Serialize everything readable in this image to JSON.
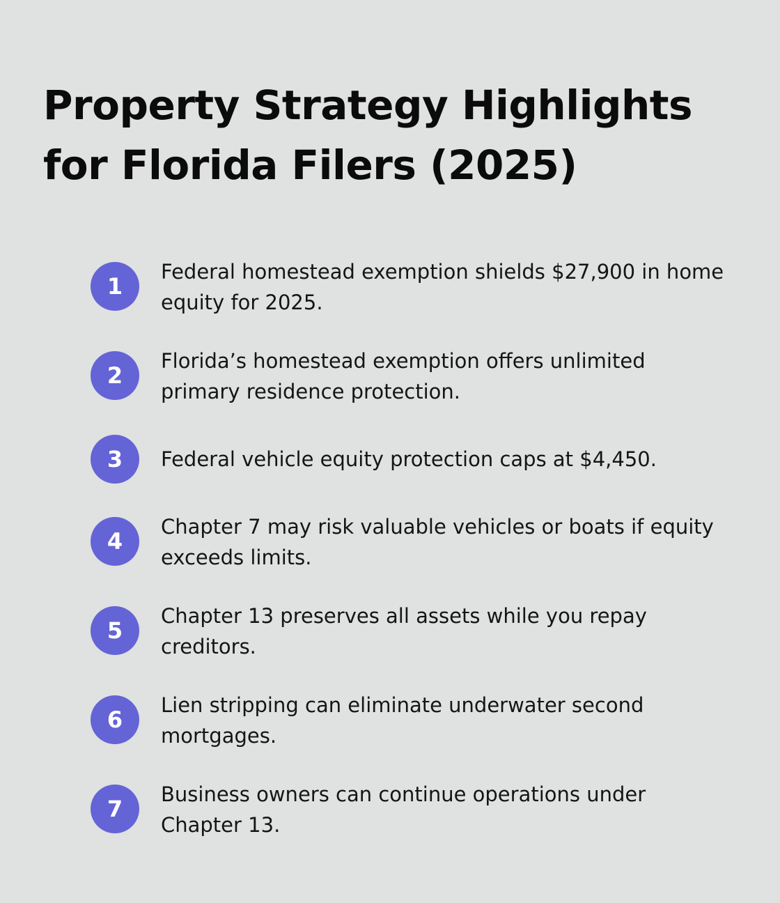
{
  "title": "Property Strategy Highlights for Florida Filers (2025)",
  "items": [
    {
      "number": "1",
      "text": "Federal homestead exemption shields $27,900 in home equity for 2025."
    },
    {
      "number": "2",
      "text": "Florida’s homestead exemption offers unlimited primary residence protection."
    },
    {
      "number": "3",
      "text": "Federal vehicle equity protection caps at $4,450."
    },
    {
      "number": "4",
      "text": "Chapter 7 may risk valuable vehicles or boats if equity exceeds limits."
    },
    {
      "number": "5",
      "text": "Chapter 13 preserves all assets while you repay creditors."
    },
    {
      "number": "6",
      "text": "Lien stripping can eliminate underwater second mortgages."
    },
    {
      "number": "7",
      "text": "Business owners can continue operations under Chapter 13."
    }
  ],
  "colors": {
    "background": "#e0e1e1",
    "badge": "#6464d6",
    "text": "#151515"
  }
}
